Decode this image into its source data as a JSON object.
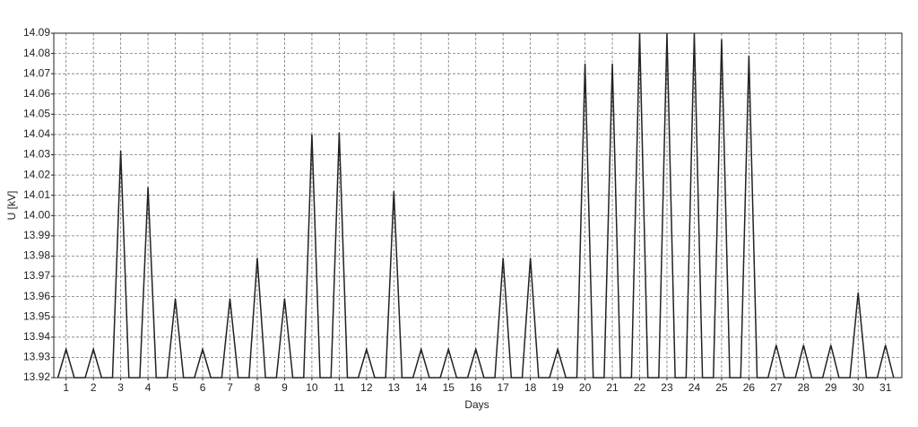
{
  "chart_data": {
    "type": "line",
    "y_label": "U [kV]",
    "x_label": "Days",
    "x": [
      0.7,
      1,
      1.3,
      1.7,
      2,
      2.3,
      2.7,
      3,
      3.3,
      3.7,
      4,
      4.3,
      4.7,
      5,
      5.3,
      5.7,
      6,
      6.3,
      6.7,
      7,
      7.3,
      7.7,
      8,
      8.3,
      8.7,
      9,
      9.3,
      9.7,
      10,
      10.3,
      10.7,
      11,
      11.3,
      11.7,
      12,
      12.3,
      12.7,
      13,
      13.3,
      13.7,
      14,
      14.3,
      14.7,
      15,
      15.3,
      15.7,
      16,
      16.3,
      16.7,
      17,
      17.3,
      17.7,
      18,
      18.3,
      18.7,
      19,
      19.3,
      19.7,
      20,
      20.3,
      20.7,
      21,
      21.3,
      21.7,
      22,
      22.3,
      22.7,
      23,
      23.3,
      23.7,
      24,
      24.3,
      24.7,
      25,
      25.3,
      25.7,
      26,
      26.3,
      26.7,
      27,
      27.3,
      27.7,
      28,
      28.3,
      28.7,
      29,
      29.3,
      29.7,
      30,
      30.3,
      30.7,
      31,
      31.3
    ],
    "series": [
      {
        "color": "#222222",
        "values": [
          13.92,
          13.934,
          13.92,
          13.92,
          13.934,
          13.92,
          13.92,
          14.032,
          13.92,
          13.92,
          14.014,
          13.92,
          13.92,
          13.959,
          13.92,
          13.92,
          13.934,
          13.92,
          13.92,
          13.959,
          13.92,
          13.92,
          13.979,
          13.92,
          13.92,
          13.959,
          13.92,
          13.92,
          14.04,
          13.92,
          13.92,
          14.041,
          13.92,
          13.92,
          13.934,
          13.92,
          13.92,
          14.012,
          13.92,
          13.92,
          13.934,
          13.92,
          13.92,
          13.934,
          13.92,
          13.92,
          13.934,
          13.92,
          13.92,
          13.979,
          13.92,
          13.92,
          13.979,
          13.92,
          13.92,
          13.934,
          13.92,
          13.92,
          14.075,
          13.92,
          13.92,
          14.075,
          13.92,
          13.92,
          14.09,
          13.92,
          13.92,
          14.09,
          13.92,
          13.92,
          14.09,
          13.92,
          13.92,
          14.087,
          13.92,
          13.92,
          14.079,
          13.92,
          13.92,
          13.936,
          13.92,
          13.92,
          13.936,
          13.92,
          13.92,
          13.936,
          13.92,
          13.92,
          13.962,
          13.92,
          13.92,
          13.936,
          13.92
        ]
      }
    ],
    "xlim": [
      0.55,
      31.6
    ],
    "xticks": [
      1,
      2,
      3,
      4,
      5,
      6,
      7,
      8,
      9,
      10,
      11,
      12,
      13,
      14,
      15,
      16,
      17,
      18,
      19,
      20,
      21,
      22,
      23,
      24,
      25,
      26,
      27,
      28,
      29,
      30,
      31
    ],
    "ylim": [
      13.92,
      14.09
    ],
    "yticks": [
      13.92,
      13.93,
      13.94,
      13.95,
      13.96,
      13.97,
      13.98,
      13.99,
      {
        "value": 14,
        "label": "14.00"
      },
      14.01,
      14.02,
      14.03,
      14.04,
      14.05,
      14.06,
      14.07,
      14.08,
      14.09
    ],
    "grid": true
  }
}
